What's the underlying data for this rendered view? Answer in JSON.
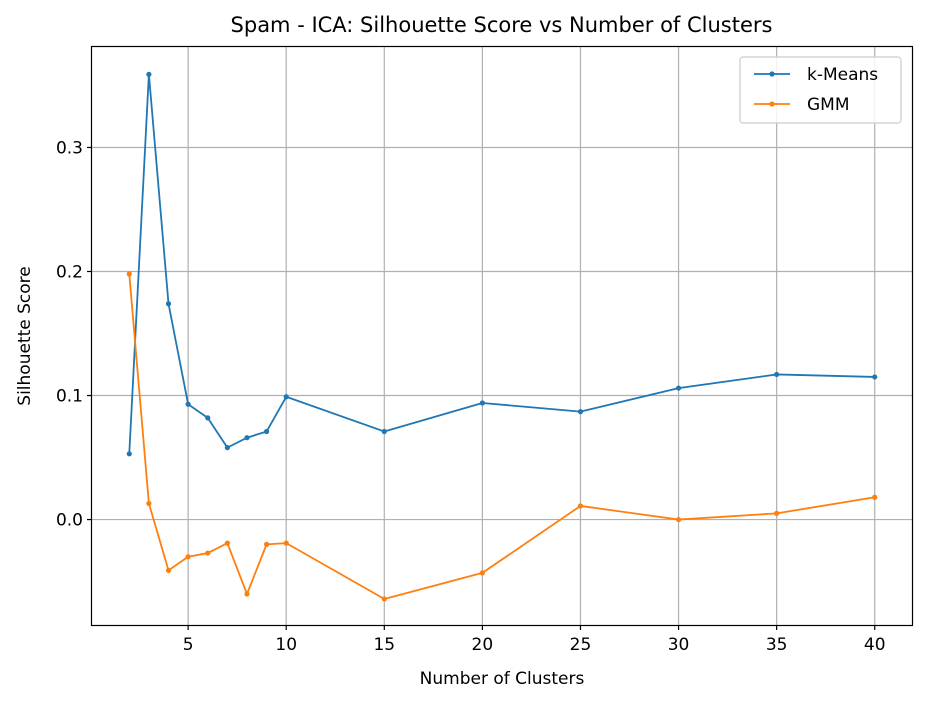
{
  "chart_data": {
    "type": "line",
    "title": "Spam - ICA: Silhouette Score vs Number of Clusters",
    "xlabel": "Number of Clusters",
    "ylabel": "Silhouette Score",
    "x": [
      2,
      3,
      4,
      5,
      6,
      7,
      8,
      9,
      10,
      15,
      20,
      25,
      30,
      35,
      40
    ],
    "series": [
      {
        "name": "k-Means",
        "color": "#1f77b4",
        "values": [
          0.053,
          0.359,
          0.174,
          0.093,
          0.082,
          0.058,
          0.066,
          0.071,
          0.099,
          0.071,
          0.094,
          0.087,
          0.106,
          0.117,
          0.115
        ]
      },
      {
        "name": "GMM",
        "color": "#ff7f0e",
        "values": [
          0.198,
          0.013,
          -0.041,
          -0.03,
          -0.027,
          -0.019,
          -0.06,
          -0.02,
          -0.019,
          -0.064,
          -0.043,
          0.011,
          0.0,
          0.005,
          0.018
        ]
      }
    ],
    "xlim": [
      0.1,
      41.9
    ],
    "ylim": [
      -0.085,
      0.381
    ],
    "xticks": [
      5,
      10,
      15,
      20,
      25,
      30,
      35,
      40
    ],
    "xtick_labels": [
      "5",
      "10",
      "15",
      "20",
      "25",
      "30",
      "35",
      "40"
    ],
    "yticks": [
      0.0,
      0.1,
      0.2,
      0.3
    ],
    "ytick_labels": [
      "0.0",
      "0.1",
      "0.2",
      "0.3"
    ],
    "grid": true,
    "legend_position": "top-right"
  }
}
